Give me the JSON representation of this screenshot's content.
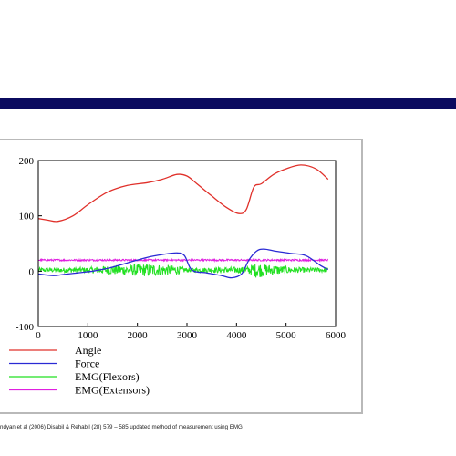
{
  "caption": "ndyan et al (2006) Disabil & Rehabil (28) 579 – 585 updated method of measurement using EMG",
  "chart_data": {
    "type": "line",
    "title": "",
    "xlabel": "",
    "ylabel": "",
    "xlim": [
      0,
      6000
    ],
    "ylim": [
      -100,
      200
    ],
    "x_ticks": [
      0,
      1000,
      2000,
      3000,
      4000,
      5000,
      6000
    ],
    "y_ticks": [
      -100,
      0,
      100,
      200
    ],
    "grid": false,
    "legend_position": "bottom-left",
    "series": [
      {
        "name": "Angle",
        "color": "#e0302a",
        "style": "line",
        "x": [
          0,
          200,
          400,
          700,
          1000,
          1400,
          1800,
          2200,
          2500,
          2800,
          3000,
          3200,
          3500,
          3800,
          4050,
          4200,
          4350,
          4500,
          4750,
          5000,
          5300,
          5600,
          5850
        ],
        "y": [
          95,
          92,
          90,
          100,
          120,
          143,
          155,
          160,
          166,
          175,
          172,
          158,
          136,
          115,
          104,
          112,
          152,
          158,
          175,
          185,
          192,
          185,
          166
        ]
      },
      {
        "name": "Force",
        "color": "#2a2ad4",
        "style": "line",
        "x": [
          0,
          300,
          500,
          800,
          1100,
          1400,
          1800,
          2200,
          2500,
          2800,
          2950,
          3100,
          3400,
          3700,
          3900,
          4100,
          4250,
          4400,
          4550,
          4800,
          5100,
          5400,
          5700,
          5850
        ],
        "y": [
          -5,
          -8,
          -6,
          -3,
          0,
          5,
          15,
          25,
          30,
          33,
          28,
          2,
          -3,
          -8,
          -12,
          -5,
          20,
          36,
          40,
          36,
          32,
          28,
          10,
          3
        ]
      },
      {
        "name": "EMG(Flexors)",
        "color": "#22e022",
        "style": "noise",
        "center": 2,
        "x_range": [
          0,
          5850
        ],
        "amplitude_profile": [
          {
            "x": 0,
            "amp": 4
          },
          {
            "x": 1000,
            "amp": 5
          },
          {
            "x": 1400,
            "amp": 8
          },
          {
            "x": 2200,
            "amp": 12
          },
          {
            "x": 2800,
            "amp": 8
          },
          {
            "x": 3000,
            "amp": 4
          },
          {
            "x": 4200,
            "amp": 6
          },
          {
            "x": 4400,
            "amp": 14
          },
          {
            "x": 4700,
            "amp": 10
          },
          {
            "x": 5200,
            "amp": 5
          },
          {
            "x": 5850,
            "amp": 4
          }
        ]
      },
      {
        "name": "EMG(Extensors)",
        "color": "#e020e0",
        "style": "noise",
        "center": 20,
        "x_range": [
          0,
          5850
        ],
        "amplitude_profile": [
          {
            "x": 0,
            "amp": 1.6
          },
          {
            "x": 5850,
            "amp": 1.6
          }
        ]
      }
    ]
  }
}
